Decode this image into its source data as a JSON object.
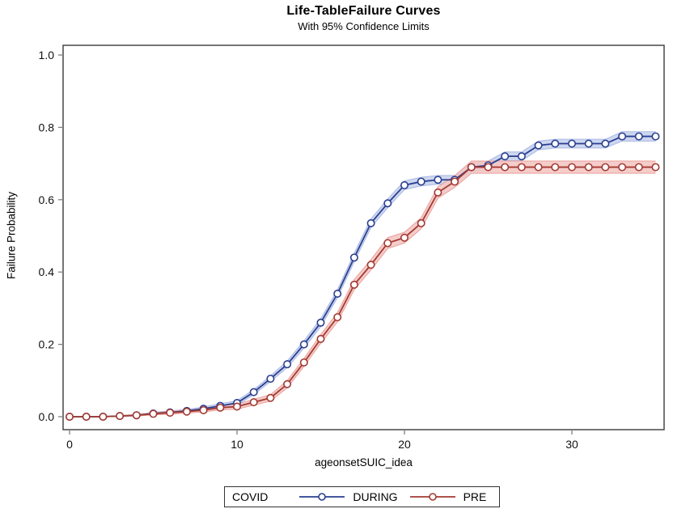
{
  "chart_data": {
    "type": "line",
    "title": "Life-TableFailure Curves",
    "subtitle": "With 95% Confidence Limits",
    "xlabel": "ageonsetSUIC_idea",
    "ylabel": "Failure Probability",
    "xlim": [
      0,
      36
    ],
    "ylim": [
      0.0,
      1.0
    ],
    "x_ticks": [
      0,
      10,
      20,
      30
    ],
    "y_ticks": [
      0.0,
      0.2,
      0.4,
      0.6,
      0.8,
      1.0
    ],
    "grid": false,
    "marker": "open-circle",
    "legend": {
      "position": "bottom-center",
      "title": "COVID",
      "entries": [
        "DURING",
        "PRE"
      ]
    },
    "x": [
      0,
      1,
      2,
      3,
      4,
      5,
      6,
      7,
      8,
      9,
      10,
      11,
      12,
      13,
      14,
      15,
      16,
      17,
      18,
      19,
      20,
      21,
      22,
      23,
      24,
      25,
      26,
      27,
      28,
      29,
      30,
      31,
      32,
      33,
      34,
      35
    ],
    "series": [
      {
        "name": "DURING",
        "color": "#2a3f8f",
        "band_color": "#c9d3ee",
        "band_edge_color": "#a9b8e4",
        "values": [
          0.0,
          0.0,
          0.0,
          0.002,
          0.004,
          0.009,
          0.012,
          0.016,
          0.022,
          0.03,
          0.038,
          0.068,
          0.105,
          0.145,
          0.2,
          0.26,
          0.34,
          0.44,
          0.535,
          0.59,
          0.64,
          0.65,
          0.655,
          0.655,
          0.69,
          0.695,
          0.72,
          0.72,
          0.75,
          0.755,
          0.755,
          0.755,
          0.755,
          0.775,
          0.775,
          0.775
        ],
        "ci_halfwidth": [
          0,
          0,
          0,
          0.001,
          0.002,
          0.003,
          0.004,
          0.004,
          0.005,
          0.006,
          0.006,
          0.007,
          0.008,
          0.009,
          0.01,
          0.011,
          0.011,
          0.012,
          0.012,
          0.012,
          0.012,
          0.012,
          0.012,
          0.012,
          0.012,
          0.012,
          0.012,
          0.012,
          0.012,
          0.012,
          0.012,
          0.012,
          0.012,
          0.013,
          0.013,
          0.013
        ]
      },
      {
        "name": "PRE",
        "color": "#a33a32",
        "band_color": "#f4c7c4",
        "band_edge_color": "#e8a09a",
        "values": [
          0.0,
          0.0,
          0.0,
          0.002,
          0.004,
          0.008,
          0.011,
          0.014,
          0.018,
          0.025,
          0.028,
          0.04,
          0.052,
          0.09,
          0.15,
          0.215,
          0.275,
          0.365,
          0.42,
          0.48,
          0.495,
          0.535,
          0.62,
          0.65,
          0.69,
          0.69,
          0.69,
          0.69,
          0.69,
          0.69,
          0.69,
          0.69,
          0.69,
          0.69,
          0.69,
          0.69
        ],
        "ci_halfwidth": [
          0,
          0,
          0,
          0.001,
          0.002,
          0.003,
          0.004,
          0.004,
          0.005,
          0.006,
          0.007,
          0.008,
          0.009,
          0.01,
          0.011,
          0.012,
          0.013,
          0.014,
          0.014,
          0.015,
          0.015,
          0.015,
          0.016,
          0.016,
          0.017,
          0.017,
          0.017,
          0.017,
          0.017,
          0.017,
          0.017,
          0.017,
          0.017,
          0.017,
          0.017,
          0.017
        ]
      }
    ]
  },
  "style": {
    "frame_color": "#3a3a3a",
    "tick_color": "#808080",
    "text_color": "#111111",
    "background": "#ffffff"
  }
}
